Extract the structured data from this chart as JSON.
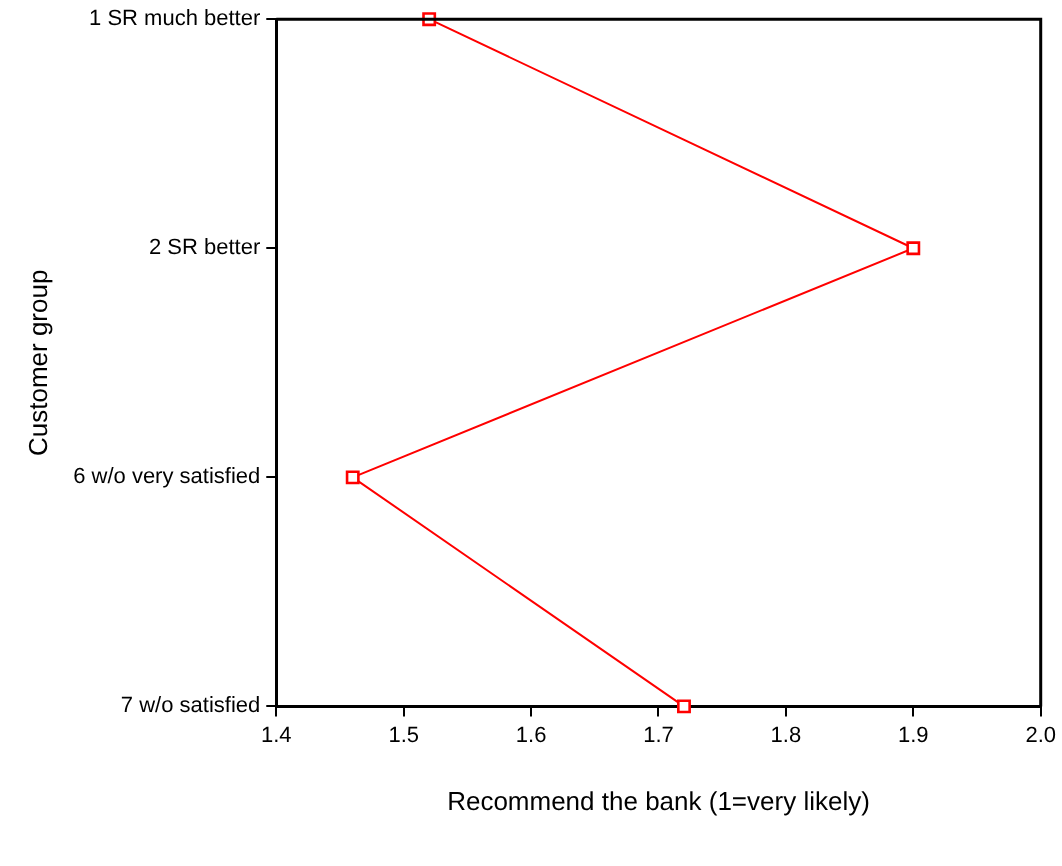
{
  "chart_data": {
    "type": "line",
    "orientation": "horizontal",
    "xlabel": "Recommend the bank (1=very likely)",
    "ylabel": "Customer group",
    "categories": [
      "1 SR much better",
      "2 SR better",
      "6 w/o very satisfied",
      "7 w/o satisfied"
    ],
    "values": [
      1.52,
      1.9,
      1.46,
      1.72
    ],
    "color": "#ff0000",
    "xlim": [
      1.4,
      2.0
    ],
    "xticks": [
      {
        "value": 1.4,
        "label": "1.4"
      },
      {
        "value": 1.5,
        "label": "1.5"
      },
      {
        "value": 1.6,
        "label": "1.6"
      },
      {
        "value": 1.7,
        "label": "1.7"
      },
      {
        "value": 1.8,
        "label": "1.8"
      },
      {
        "value": 1.9,
        "label": "1.9"
      },
      {
        "value": 2.0,
        "label": "2.0"
      }
    ],
    "grid": false,
    "legend": false,
    "marker": "square",
    "line_style": "solid"
  }
}
